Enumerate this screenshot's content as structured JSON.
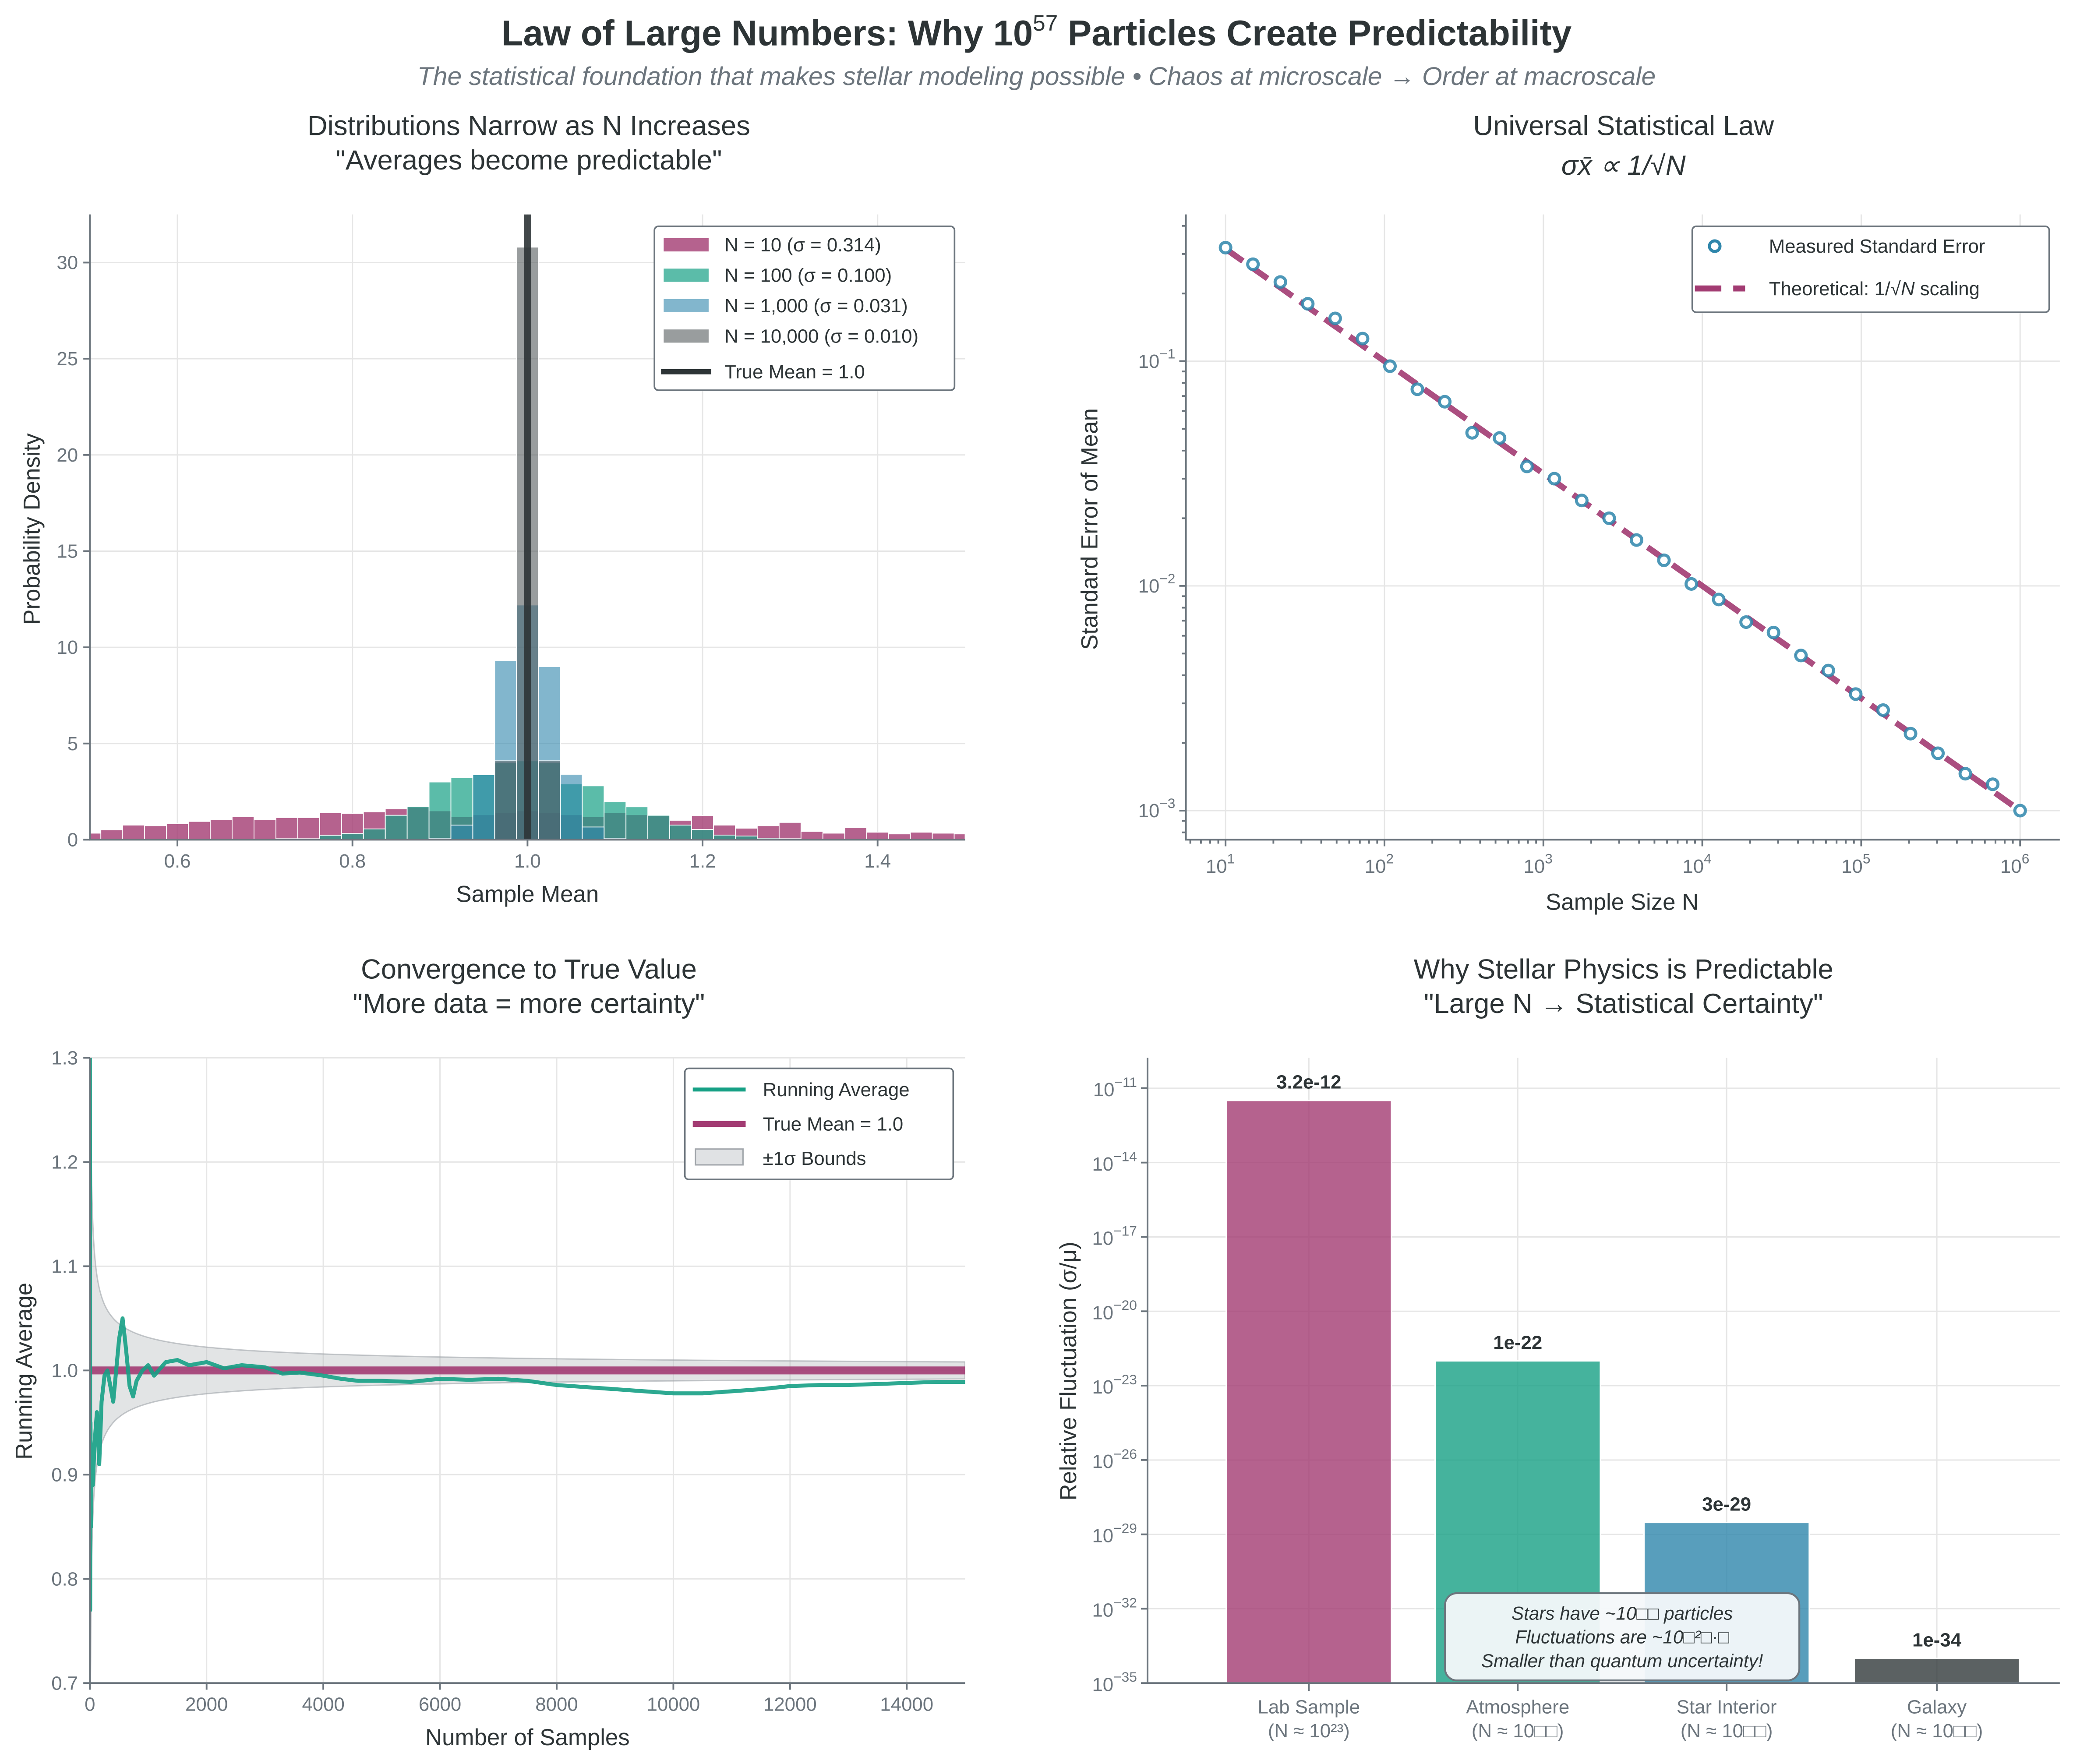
{
  "figure": {
    "title_pre": "Law of Large Numbers: Why 10",
    "title_sup": "57",
    "title_post": " Particles Create Predictability",
    "subtitle": "The statistical foundation that makes stellar modeling possible • Chaos at microscale → Order at macroscale"
  },
  "colors": {
    "pink": "#A23B72",
    "teal": "#16A085",
    "blue": "#2E86AB",
    "gray": "#555B5E",
    "dark": "#2D3436",
    "band": "#B2B7BB"
  },
  "chart_data": [
    {
      "type": "bar",
      "subtype": "histogram",
      "title": "Distributions Narrow as N Increases",
      "subtitle": "\"Averages become predictable\"",
      "xlabel": "Sample Mean",
      "ylabel": "Probability Density",
      "xlim": [
        0.5,
        1.5
      ],
      "ylim": [
        0,
        32.5
      ],
      "xticks": [
        "0.6",
        "0.8",
        "1.0",
        "1.2",
        "1.4"
      ],
      "yticks": [
        "0",
        "5",
        "10",
        "15",
        "20",
        "25",
        "30"
      ],
      "bin_width": 0.025,
      "grid": true,
      "legend_position": "top-right",
      "series": [
        {
          "name": "N = 10 (σ = 0.314)",
          "color": "#A23B72",
          "bins": [
            [
              0.5,
              0.34
            ],
            [
              0.525,
              0.51
            ],
            [
              0.55,
              0.76
            ],
            [
              0.575,
              0.73
            ],
            [
              0.6,
              0.83
            ],
            [
              0.625,
              0.95
            ],
            [
              0.65,
              1.05
            ],
            [
              0.675,
              1.19
            ],
            [
              0.7,
              1.05
            ],
            [
              0.725,
              1.15
            ],
            [
              0.75,
              1.15
            ],
            [
              0.775,
              1.4
            ],
            [
              0.8,
              1.37
            ],
            [
              0.825,
              1.45
            ],
            [
              0.85,
              1.6
            ],
            [
              0.875,
              1.7
            ],
            [
              0.9,
              1.5
            ],
            [
              0.925,
              1.2
            ],
            [
              0.95,
              1.3
            ],
            [
              0.975,
              1.4
            ],
            [
              1.0,
              1.5
            ],
            [
              1.025,
              1.4
            ],
            [
              1.05,
              1.3
            ],
            [
              1.075,
              1.2
            ],
            [
              1.1,
              1.4
            ],
            [
              1.125,
              1.3
            ],
            [
              1.15,
              1.25
            ],
            [
              1.175,
              1.01
            ],
            [
              1.2,
              1.26
            ],
            [
              1.225,
              0.76
            ],
            [
              1.25,
              0.6
            ],
            [
              1.275,
              0.73
            ],
            [
              1.3,
              0.9
            ],
            [
              1.325,
              0.43
            ],
            [
              1.35,
              0.34
            ],
            [
              1.375,
              0.62
            ],
            [
              1.4,
              0.39
            ],
            [
              1.425,
              0.3
            ],
            [
              1.45,
              0.39
            ],
            [
              1.475,
              0.34
            ],
            [
              1.5,
              0.3
            ]
          ]
        },
        {
          "name": "N = 100 (σ = 0.100)",
          "color": "#16A085",
          "bins": [
            [
              0.725,
              0.05
            ],
            [
              0.75,
              0.05
            ],
            [
              0.775,
              0.23
            ],
            [
              0.8,
              0.33
            ],
            [
              0.825,
              0.56
            ],
            [
              0.85,
              1.27
            ],
            [
              0.875,
              1.72
            ],
            [
              0.9,
              3.0
            ],
            [
              0.925,
              3.23
            ],
            [
              0.95,
              3.38
            ],
            [
              0.975,
              4.0
            ],
            [
              1.0,
              4.1
            ],
            [
              1.025,
              4.0
            ],
            [
              1.05,
              2.9
            ],
            [
              1.075,
              2.8
            ],
            [
              1.1,
              1.97
            ],
            [
              1.125,
              1.71
            ],
            [
              1.15,
              1.27
            ],
            [
              1.175,
              0.76
            ],
            [
              1.2,
              0.53
            ],
            [
              1.225,
              0.24
            ],
            [
              1.25,
              0.19
            ],
            [
              1.275,
              0.08
            ],
            [
              1.3,
              0.05
            ]
          ]
        },
        {
          "name": "N = 1,000 (σ = 0.031)",
          "color": "#2E86AB",
          "bins": [
            [
              0.9,
              0.08
            ],
            [
              0.925,
              0.76
            ],
            [
              0.95,
              3.38
            ],
            [
              0.975,
              9.3
            ],
            [
              1.0,
              12.2
            ],
            [
              1.025,
              9.0
            ],
            [
              1.05,
              3.4
            ],
            [
              1.075,
              0.66
            ],
            [
              1.1,
              0.08
            ]
          ]
        },
        {
          "name": "N = 10,000 (σ = 0.010)",
          "color": "#555B5E",
          "bins": [
            [
              0.975,
              4.1
            ],
            [
              1.0,
              30.8
            ],
            [
              1.025,
              4.1
            ]
          ]
        }
      ],
      "reference_line": {
        "name": "True Mean = 1.0",
        "x": 1.0
      }
    },
    {
      "type": "scatter",
      "title": "Universal Statistical Law",
      "subtitle": "σx̄ ∝ 1/√N",
      "xlabel": "Sample Size N",
      "ylabel": "Standard Error of Mean",
      "xscale": "log",
      "yscale": "log",
      "xlim": [
        5,
        2000000
      ],
      "ylim": [
        0.00074,
        0.45
      ],
      "xtick_exponents": [
        1,
        2,
        3,
        4,
        5,
        6
      ],
      "ytick_exponents": [
        -3,
        -2,
        -1
      ],
      "grid": true,
      "legend_position": "top-right",
      "measured": {
        "name": "Measured Standard Error",
        "color": "#2E86AB",
        "y": [
          0.32,
          0.27,
          0.225,
          0.18,
          0.155,
          0.126,
          0.095,
          0.075,
          0.066,
          0.048,
          0.0455,
          0.034,
          0.03,
          0.024,
          0.02,
          0.016,
          0.013,
          0.0102,
          0.0087,
          0.0069,
          0.0062,
          0.0049,
          0.0042,
          0.0033,
          0.0028,
          0.0022,
          0.0018,
          0.00146,
          0.00131,
          0.001
        ],
        "x_range": [
          10,
          1000000
        ]
      },
      "theoretical": {
        "name_pre": "Theoretical: 1/√",
        "name_var": "N",
        "name_post": " scaling",
        "color": "#A23B72",
        "formula": "1/sqrt(N)"
      }
    },
    {
      "type": "line",
      "title": "Convergence to True Value",
      "subtitle": "\"More data = more certainty\"",
      "xlabel": "Number of Samples",
      "ylabel": "Running Average",
      "xlim": [
        0,
        15000
      ],
      "ylim": [
        0.7,
        1.3
      ],
      "xticks": [
        0,
        2000,
        4000,
        6000,
        8000,
        10000,
        12000,
        14000
      ],
      "yticks": [
        "0.7",
        "0.8",
        "0.9",
        "1.0",
        "1.1",
        "1.2",
        "1.3"
      ],
      "grid": true,
      "legend_position": "top-right",
      "running_average": {
        "name": "Running Average",
        "color": "#16A085",
        "x": [
          1,
          5,
          10,
          20,
          30,
          50,
          80,
          120,
          160,
          200,
          250,
          300,
          350,
          400,
          450,
          500,
          560,
          620,
          680,
          740,
          800,
          900,
          1000,
          1100,
          1300,
          1500,
          1700,
          2000,
          2300,
          2600,
          3000,
          3300,
          3600,
          4000,
          4300,
          4600,
          5000,
          5500,
          6000,
          6500,
          7000,
          7500,
          8000,
          8500,
          9000,
          9500,
          10000,
          10500,
          11000,
          11500,
          12000,
          12500,
          13000,
          13500,
          14000,
          14500,
          15000
        ],
        "y": [
          1.3,
          0.77,
          0.95,
          0.85,
          0.92,
          0.89,
          0.93,
          0.96,
          0.91,
          0.97,
          0.995,
          1.0,
          0.985,
          0.97,
          1.0,
          1.03,
          1.05,
          1.02,
          0.985,
          0.975,
          0.99,
          1.0,
          1.005,
          0.995,
          1.008,
          1.01,
          1.005,
          1.008,
          1.002,
          1.005,
          1.003,
          0.997,
          0.998,
          0.995,
          0.992,
          0.99,
          0.99,
          0.989,
          0.992,
          0.991,
          0.992,
          0.99,
          0.986,
          0.984,
          0.982,
          0.98,
          0.978,
          0.978,
          0.98,
          0.982,
          0.985,
          0.986,
          0.986,
          0.987,
          0.988,
          0.989,
          0.989
        ]
      },
      "true_mean": {
        "name": "True Mean = 1.0",
        "value": 1.0,
        "color": "#A23B72"
      },
      "bounds": {
        "name": "±1σ Bounds",
        "population_sd": 1.0
      }
    },
    {
      "type": "bar",
      "title": "Why Stellar Physics is Predictable",
      "subtitle": "\"Large N → Statistical Certainty\"",
      "ylabel": "Relative Fluctuation (σ/μ)",
      "yscale": "log",
      "ylim": [
        1e-35,
        1.7e-10
      ],
      "ytick_exponents": [
        -35,
        -32,
        -29,
        -26,
        -23,
        -20,
        -17,
        -14,
        -11
      ],
      "grid": true,
      "categories": [
        {
          "name": "Lab Sample",
          "n_label": "(N ≈ 10²³)"
        },
        {
          "name": "Atmosphere",
          "n_label": "(N ≈ 10□□)"
        },
        {
          "name": "Star Interior",
          "n_label": "(N ≈ 10□□)"
        },
        {
          "name": "Galaxy",
          "n_label": "(N ≈ 10□□)"
        }
      ],
      "values": [
        3.2e-12,
        1e-22,
        3e-29,
        1e-34
      ],
      "value_labels": [
        "3.2e-12",
        "1e-22",
        "3e-29",
        "1e-34"
      ],
      "bar_colors": [
        "#A23B72",
        "#16A085",
        "#2E86AB",
        "#2D3436"
      ],
      "annotation": [
        "Stars have ~10□□ particles",
        "Fluctuations are ~10□²□·□",
        "Smaller than quantum uncertainty!"
      ]
    }
  ]
}
